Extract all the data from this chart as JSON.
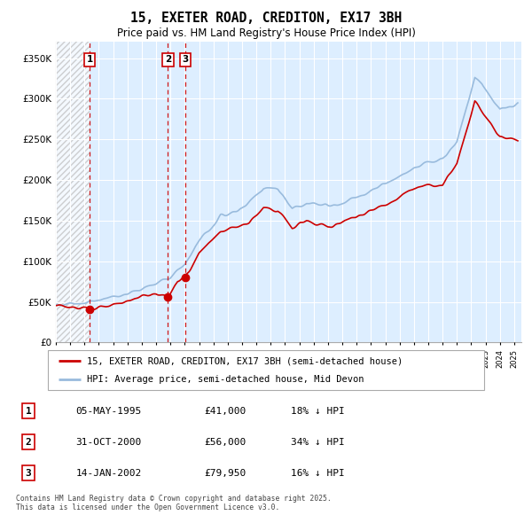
{
  "title": "15, EXETER ROAD, CREDITON, EX17 3BH",
  "subtitle": "Price paid vs. HM Land Registry's House Price Index (HPI)",
  "property_label": "15, EXETER ROAD, CREDITON, EX17 3BH (semi-detached house)",
  "hpi_label": "HPI: Average price, semi-detached house, Mid Devon",
  "property_color": "#cc0000",
  "hpi_color": "#99bbdd",
  "footnote": "Contains HM Land Registry data © Crown copyright and database right 2025.\nThis data is licensed under the Open Government Licence v3.0.",
  "transactions": [
    {
      "num": 1,
      "date": "05-MAY-1995",
      "price": 41000,
      "pct": "18% ↓ HPI",
      "x_year": 1995.35
    },
    {
      "num": 2,
      "date": "31-OCT-2000",
      "price": 56000,
      "pct": "34% ↓ HPI",
      "x_year": 2000.83
    },
    {
      "num": 3,
      "date": "14-JAN-2002",
      "price": 79950,
      "pct": "16% ↓ HPI",
      "x_year": 2002.04
    }
  ],
  "ylim": [
    0,
    370000
  ],
  "yticks": [
    0,
    50000,
    100000,
    150000,
    200000,
    250000,
    300000,
    350000
  ],
  "ytick_labels": [
    "£0",
    "£50K",
    "£100K",
    "£150K",
    "£200K",
    "£250K",
    "£300K",
    "£350K"
  ],
  "xlim": [
    1993.0,
    2025.5
  ],
  "grid_color": "#ccddee",
  "bg_color": "#ddeeff"
}
